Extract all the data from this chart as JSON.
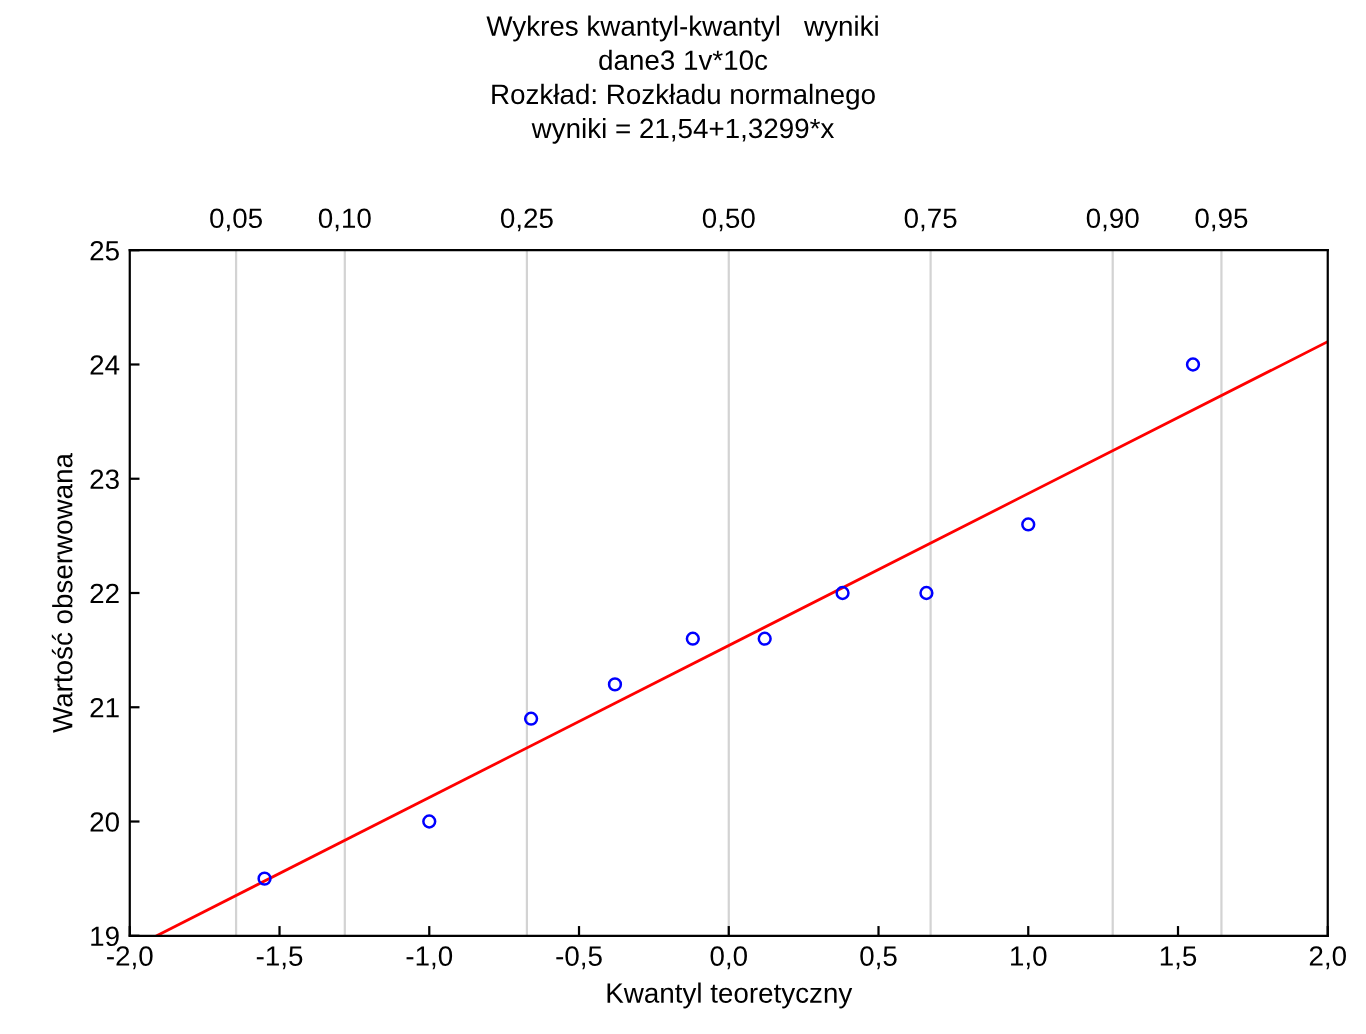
{
  "chart_data": {
    "type": "scatter",
    "title": "Wykres kwantyl-kwantyl   wyniki",
    "subtitle": "dane3 1v*10c",
    "annotations": [
      "Rozkład: Rozkładu normalnego",
      "wyniki = 21,54+1,3299*x",
      {
        "text": "0,05",
        "x": -1.645,
        "y": 25
      },
      {
        "text": "0,10",
        "x": -1.282,
        "y": 25
      },
      {
        "text": "0,25",
        "x": -0.674,
        "y": 25
      },
      {
        "text": "0,50",
        "x": 0.0,
        "y": 25
      },
      {
        "text": "0,75",
        "x": 0.674,
        "y": 25
      },
      {
        "text": "0,90",
        "x": 1.282,
        "y": 25
      },
      {
        "text": "0,95",
        "x": 1.645,
        "y": 25
      }
    ],
    "xlabel": "Kwantyl teoretyczny",
    "ylabel": "Wartość obserwowana",
    "series": [
      {
        "color": "#0000ff",
        "marker": "circle",
        "x": [
          -1.55,
          -1.0,
          -0.66,
          -0.38,
          -0.12,
          0.12,
          0.38,
          0.66,
          1.0,
          1.55
        ],
        "values": [
          19.5,
          20.0,
          20.9,
          21.2,
          21.6,
          21.6,
          22.0,
          22.0,
          22.6,
          24.0
        ]
      },
      {
        "type": "line",
        "color": "#ff0000",
        "line_style": "solid",
        "x": [
          -1.91,
          2.0
        ],
        "values": [
          19.0,
          24.2
        ]
      }
    ],
    "xlim": [
      -2.0,
      2.0
    ],
    "xticks": [
      {
        "value": -2.0,
        "label": "-2,0"
      },
      {
        "value": -1.5,
        "label": "-1,5"
      },
      {
        "value": -1.0,
        "label": "-1,0"
      },
      {
        "value": -0.5,
        "label": "-0,5"
      },
      {
        "value": 0.0,
        "label": "0,0"
      },
      {
        "value": 0.5,
        "label": "0,5"
      },
      {
        "value": 1.0,
        "label": "1,0"
      },
      {
        "value": 1.5,
        "label": "1,5"
      },
      {
        "value": 2.0,
        "label": "2,0"
      }
    ],
    "ylim": [
      19,
      25
    ],
    "yticks": [
      19,
      20,
      21,
      22,
      23,
      24,
      25
    ],
    "ref_lines": [
      {
        "axis": "x",
        "value": -1.645,
        "color": "#d3d3d3"
      },
      {
        "axis": "x",
        "value": -1.282,
        "color": "#d3d3d3"
      },
      {
        "axis": "x",
        "value": -0.674,
        "color": "#d3d3d3"
      },
      {
        "axis": "x",
        "value": 0.0,
        "color": "#d3d3d3"
      },
      {
        "axis": "x",
        "value": 0.674,
        "color": "#d3d3d3"
      },
      {
        "axis": "x",
        "value": 1.282,
        "color": "#d3d3d3"
      },
      {
        "axis": "x",
        "value": 1.645,
        "color": "#d3d3d3"
      }
    ],
    "grid": false,
    "legend": false
  }
}
